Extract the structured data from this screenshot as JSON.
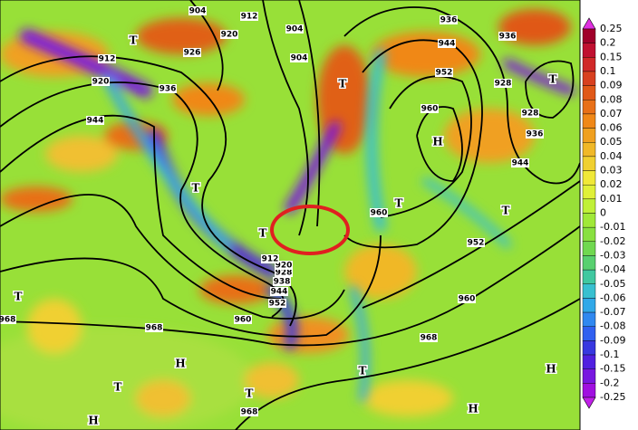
{
  "colorbar": {
    "labels": [
      "0.25",
      "0.2",
      "0.15",
      "0.1",
      "0.09",
      "0.08",
      "0.07",
      "0.06",
      "0.05",
      "0.04",
      "0.03",
      "0.02",
      "0.01",
      "0",
      "-0.01",
      "-0.02",
      "-0.03",
      "-0.04",
      "-0.05",
      "-0.06",
      "-0.07",
      "-0.08",
      "-0.09",
      "-0.1",
      "-0.15",
      "-0.2",
      "-0.25"
    ],
    "colors": [
      "#e030e0",
      "#a0002a",
      "#c01030",
      "#d02828",
      "#d84020",
      "#e05818",
      "#e87018",
      "#f08818",
      "#f0a020",
      "#f0b828",
      "#f0d030",
      "#f0e838",
      "#e0f038",
      "#c0f038",
      "#a0e838",
      "#88e040",
      "#70d850",
      "#58d070",
      "#40c8a0",
      "#38c0d0",
      "#30a8e8",
      "#3088f0",
      "#3060f0",
      "#3838e0",
      "#5020e0",
      "#7818e0",
      "#a010e0",
      "#c020e8"
    ]
  },
  "contour_labels": [
    "904",
    "912",
    "920",
    "926",
    "912",
    "920",
    "936",
    "944",
    "904",
    "904",
    "936",
    "944",
    "952",
    "960",
    "936",
    "928",
    "928",
    "936",
    "944",
    "952",
    "960",
    "960",
    "968",
    "968",
    "960",
    "952",
    "944",
    "938",
    "928",
    "920",
    "912",
    "968",
    "968"
  ],
  "markers": [
    "T",
    "T",
    "T",
    "T",
    "T",
    "T",
    "T",
    "T",
    "T",
    "T",
    "T",
    "H",
    "H",
    "H",
    "H",
    "H"
  ]
}
